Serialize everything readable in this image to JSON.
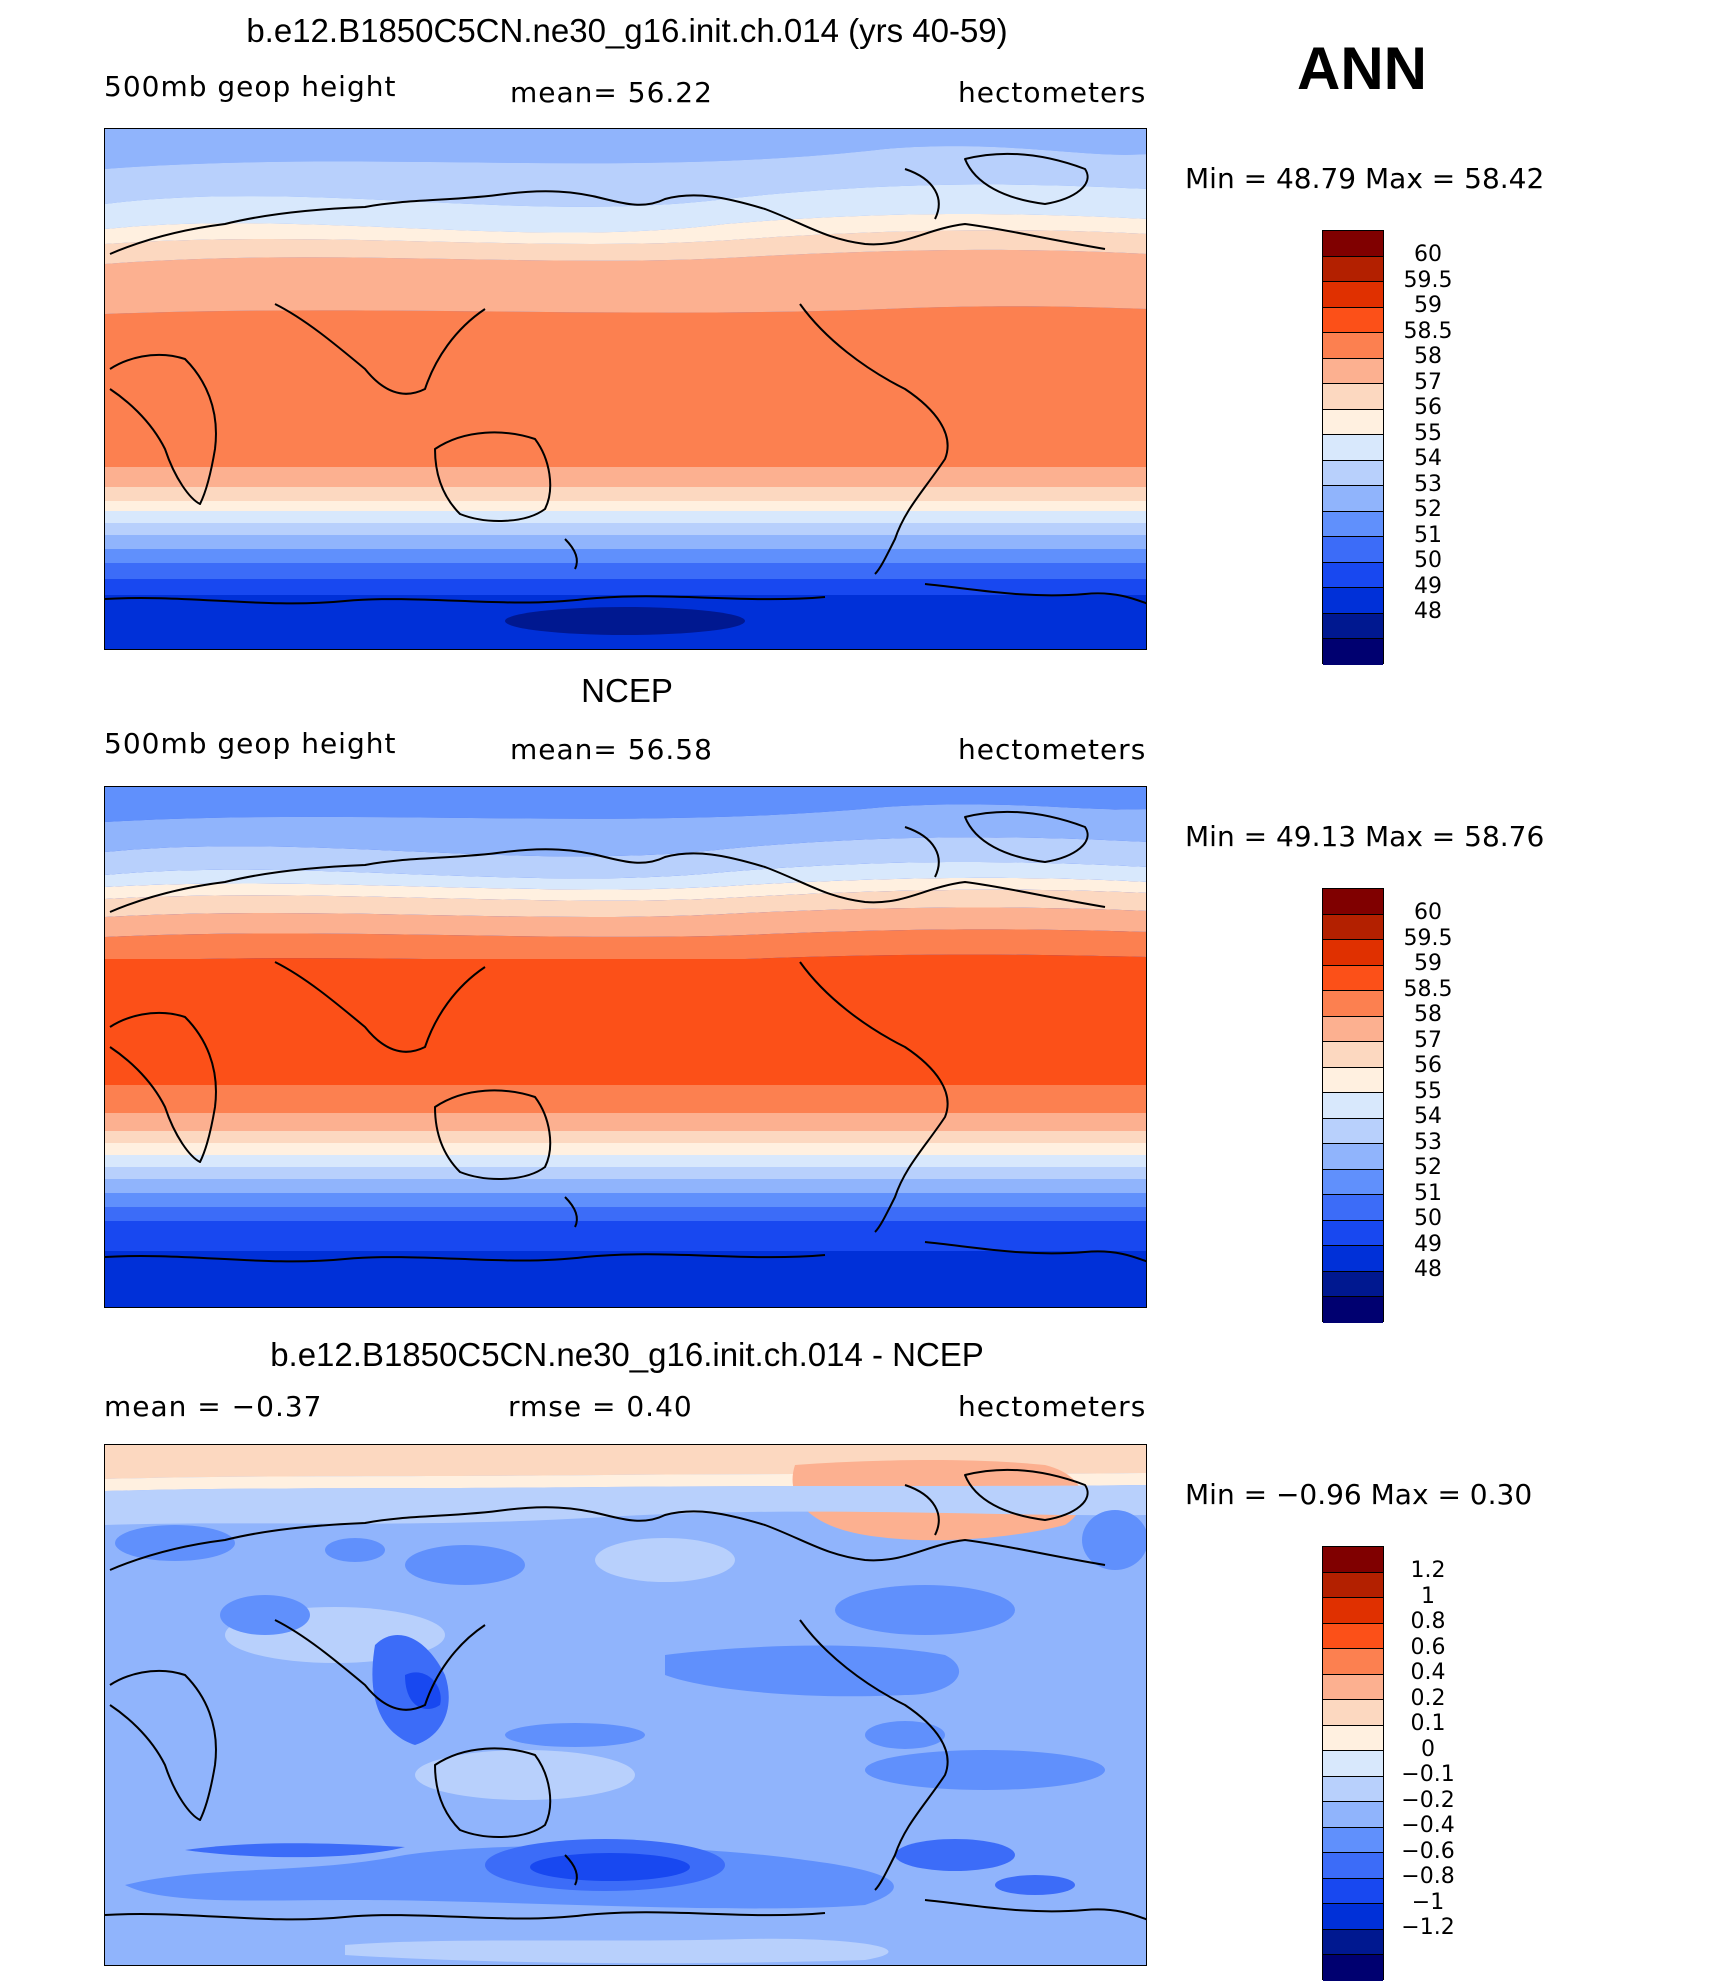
{
  "season": "ANN",
  "palette_main": [
    "#800000",
    "#B32000",
    "#E03000",
    "#FC5018",
    "#FC8050",
    "#FCB090",
    "#FCD8C0",
    "#FFF0E0",
    "#D8E8FC",
    "#B8D0FC",
    "#90B4FC",
    "#6090FC",
    "#3C6CF8",
    "#1848F0",
    "#0030D8",
    "#001890",
    "#000070"
  ],
  "palette_diff": [
    "#800000",
    "#B32000",
    "#E03000",
    "#FC5018",
    "#FC8050",
    "#FCB090",
    "#FCD8C0",
    "#FFF0E0",
    "#D8E8FC",
    "#B8D0FC",
    "#90B4FC",
    "#6090FC",
    "#3C6CF8",
    "#1848F0",
    "#0030D8",
    "#001890",
    "#000070"
  ],
  "panels": [
    {
      "title": "b.e12.B1850C5CN.ne30_g16.init.ch.014 (yrs 40-59)",
      "left_label": "500mb  geop  height",
      "center_label": "mean=   56.22",
      "right_label": "hectometers",
      "minmax": "Min =   48.79  Max =   58.42",
      "colorbar_labels": [
        "60",
        "59.5",
        "59",
        "58.5",
        "58",
        "57",
        "56",
        "55",
        "54",
        "53",
        "52",
        "51",
        "50",
        "49",
        "48"
      ]
    },
    {
      "title": "NCEP",
      "left_label": "500mb  geop  height",
      "center_label": "mean=   56.58",
      "right_label": "hectometers",
      "minmax": "Min =   49.13  Max =   58.76",
      "colorbar_labels": [
        "60",
        "59.5",
        "59",
        "58.5",
        "58",
        "57",
        "56",
        "55",
        "54",
        "53",
        "52",
        "51",
        "50",
        "49",
        "48"
      ]
    },
    {
      "title": "b.e12.B1850C5CN.ne30_g16.init.ch.014 - NCEP",
      "left_label": "mean =   −0.37",
      "center_label": "rmse =    0.40",
      "right_label": "hectometers",
      "minmax": "Min =  −0.96  Max =    0.30",
      "colorbar_labels": [
        "1.2",
        "1",
        "0.8",
        "0.6",
        "0.4",
        "0.2",
        "0.1",
        "0",
        "−0.1",
        "−0.2",
        "−0.4",
        "−0.6",
        "−0.8",
        "−1",
        "−1.2"
      ]
    }
  ]
}
